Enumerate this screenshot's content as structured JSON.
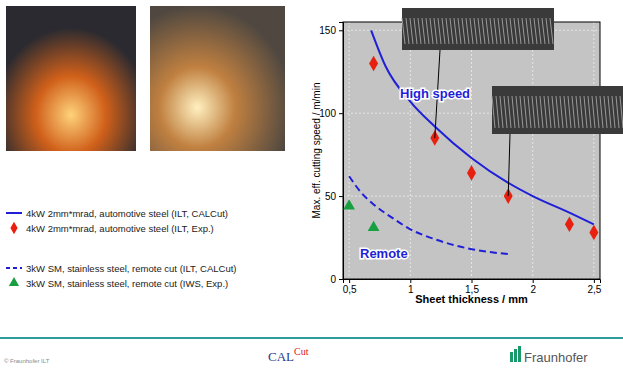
{
  "chart_data": {
    "type": "line",
    "x_label": "Sheet thickness / mm",
    "y_label": "Max. eff. cutting speed / m/min",
    "xlim": [
      0.45,
      2.55
    ],
    "xticks": [
      {
        "value": 0.5,
        "label": "0,5"
      },
      1,
      {
        "value": 1.5,
        "label": "1,5"
      },
      2,
      {
        "value": 2.5,
        "label": "2,5"
      }
    ],
    "ylim": [
      0,
      155
    ],
    "yticks": [
      0,
      50,
      100,
      150
    ],
    "grid": true,
    "legend": "left",
    "annotations": [
      "High speed",
      "Remote"
    ],
    "series": [
      {
        "name": "4kW 2mm*mrad, automotive steel (ILT, CALCut)",
        "type": "line",
        "color": "#1f1fd8",
        "line_style": "solid",
        "x": [
          0.68,
          0.8,
          1.0,
          1.2,
          1.5,
          1.8,
          2.0,
          2.3,
          2.5
        ],
        "values": [
          150,
          128,
          107,
          92,
          73,
          58,
          50,
          40,
          33
        ]
      },
      {
        "name": "4kW 2mm*mrad, automotive steel (ILT, Exp.)",
        "type": "scatter",
        "color": "#e82010",
        "marker": "diamond",
        "x": [
          0.7,
          1.2,
          1.5,
          1.8,
          2.3,
          2.5
        ],
        "values": [
          130,
          85,
          64,
          50,
          33,
          28
        ]
      },
      {
        "name": "3kW SM, stainless steel, remote cut (ILT, CALCut)",
        "type": "line",
        "color": "#1f1fd8",
        "line_style": "dashed",
        "x": [
          0.5,
          0.6,
          0.7,
          0.85,
          1.0,
          1.2,
          1.5,
          1.8
        ],
        "values": [
          62,
          52,
          45,
          37,
          30,
          24,
          18,
          15
        ]
      },
      {
        "name": "3kW SM, stainless steel, remote cut (IWS, Exp.)",
        "type": "scatter",
        "color": "#18a040",
        "marker": "triangle",
        "x": [
          0.5,
          0.7
        ],
        "values": [
          44,
          31
        ]
      }
    ]
  },
  "footer": {
    "copyright": "© Fraunhofer ILT",
    "logo_main": "CAL",
    "logo_sup": "Cut",
    "brand": "Fraunhofer"
  }
}
